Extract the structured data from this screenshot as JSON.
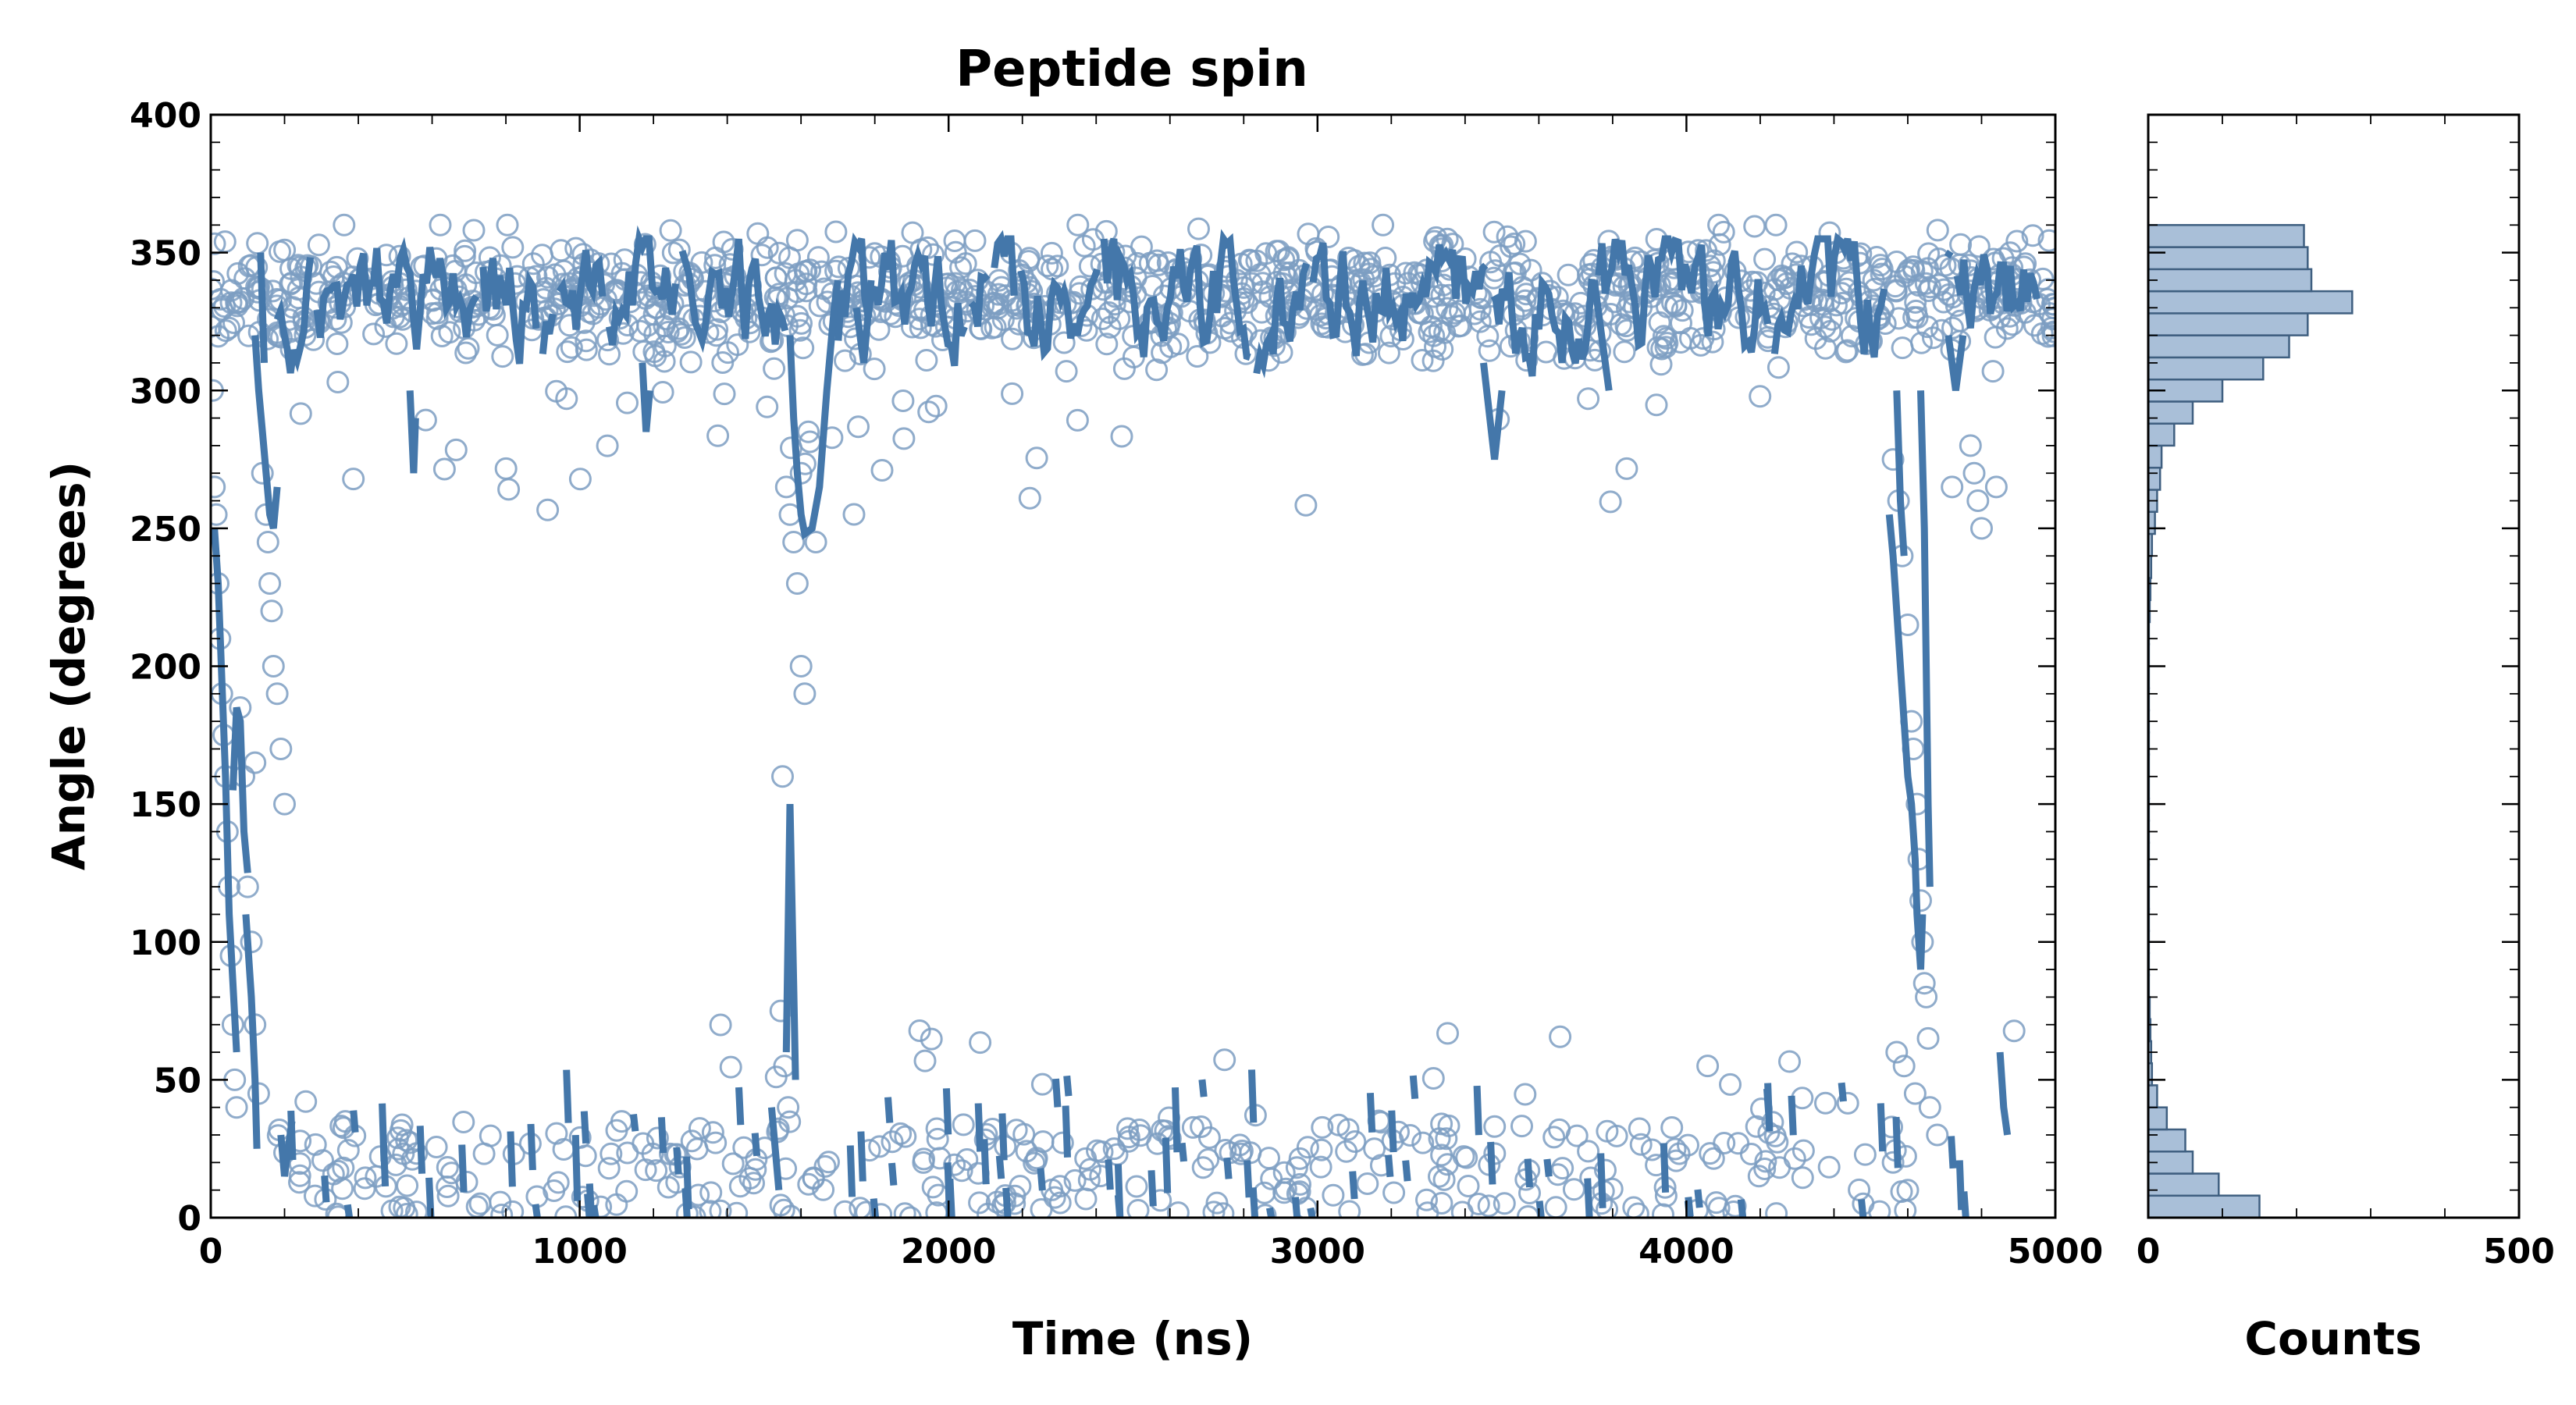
{
  "chart_data": [
    {
      "type": "scatter",
      "title": "Peptide spin",
      "xlabel": "Time (ns)",
      "ylabel": "Angle (degrees)",
      "xlim": [
        0,
        5000
      ],
      "ylim": [
        0,
        400
      ],
      "xticks": [
        0,
        1000,
        2000,
        3000,
        4000,
        5000
      ],
      "yticks": [
        0,
        50,
        100,
        150,
        200,
        250,
        300,
        350,
        400
      ],
      "grid": false,
      "series_colors": {
        "points": "#7c9ec2",
        "segments": "#4477aa"
      },
      "bands": [
        {
          "x_start": 0,
          "x_end": 5000,
          "y_low": 300,
          "y_high": 360,
          "n": 1100,
          "seed": 11
        },
        {
          "x_start": 180,
          "x_end": 4600,
          "y_low": 0,
          "y_high": 35,
          "n": 330,
          "seed": 23
        },
        {
          "x_start": 180,
          "x_end": 4950,
          "y_low": 255,
          "y_high": 300,
          "n": 40,
          "seed": 37
        },
        {
          "x_start": 180,
          "x_end": 4950,
          "y_low": 35,
          "y_high": 70,
          "n": 25,
          "seed": 41
        }
      ],
      "points_extra": [
        [
          5,
          300
        ],
        [
          10,
          265
        ],
        [
          15,
          255
        ],
        [
          20,
          230
        ],
        [
          25,
          210
        ],
        [
          30,
          190
        ],
        [
          35,
          175
        ],
        [
          40,
          160
        ],
        [
          45,
          140
        ],
        [
          50,
          120
        ],
        [
          55,
          95
        ],
        [
          60,
          70
        ],
        [
          65,
          50
        ],
        [
          70,
          40
        ],
        [
          80,
          185
        ],
        [
          90,
          160
        ],
        [
          100,
          120
        ],
        [
          110,
          100
        ],
        [
          120,
          70
        ],
        [
          130,
          45
        ],
        [
          140,
          270
        ],
        [
          150,
          255
        ],
        [
          155,
          245
        ],
        [
          160,
          230
        ],
        [
          165,
          220
        ],
        [
          170,
          200
        ],
        [
          180,
          190
        ],
        [
          190,
          170
        ],
        [
          200,
          150
        ],
        [
          120,
          165
        ],
        [
          1560,
          265
        ],
        [
          1570,
          255
        ],
        [
          1580,
          245
        ],
        [
          1590,
          230
        ],
        [
          1600,
          200
        ],
        [
          1610,
          190
        ],
        [
          1550,
          160
        ],
        [
          1545,
          75
        ],
        [
          1555,
          55
        ],
        [
          1565,
          40
        ],
        [
          1600,
          270
        ],
        [
          1620,
          285
        ],
        [
          1640,
          245
        ],
        [
          4560,
          275
        ],
        [
          4575,
          260
        ],
        [
          4585,
          240
        ],
        [
          4600,
          215
        ],
        [
          4610,
          180
        ],
        [
          4615,
          170
        ],
        [
          4625,
          150
        ],
        [
          4630,
          130
        ],
        [
          4635,
          115
        ],
        [
          4640,
          100
        ],
        [
          4645,
          85
        ],
        [
          4650,
          80
        ],
        [
          4655,
          65
        ],
        [
          4570,
          60
        ],
        [
          4590,
          55
        ],
        [
          4620,
          45
        ],
        [
          4660,
          40
        ],
        [
          4680,
          30
        ],
        [
          4770,
          280
        ],
        [
          4780,
          270
        ],
        [
          4790,
          260
        ],
        [
          4800,
          250
        ],
        [
          4720,
          265
        ],
        [
          4840,
          265
        ],
        [
          4560,
          20
        ],
        [
          4600,
          10
        ]
      ],
      "segments": [
        [
          [
            10,
            250
          ],
          [
            20,
            230
          ],
          [
            30,
            195
          ],
          [
            40,
            160
          ],
          [
            50,
            110
          ],
          [
            60,
            85
          ],
          [
            70,
            60
          ]
        ],
        [
          [
            60,
            155
          ],
          [
            70,
            185
          ],
          [
            80,
            180
          ],
          [
            90,
            140
          ],
          [
            100,
            125
          ]
        ],
        [
          [
            95,
            110
          ],
          [
            100,
            100
          ],
          [
            110,
            80
          ],
          [
            120,
            50
          ],
          [
            125,
            25
          ]
        ],
        [
          [
            120,
            320
          ],
          [
            130,
            300
          ],
          [
            140,
            285
          ],
          [
            150,
            270
          ],
          [
            160,
            255
          ],
          [
            170,
            250
          ],
          [
            180,
            265
          ]
        ],
        [
          [
            135,
            350
          ],
          [
            140,
            330
          ],
          [
            145,
            310
          ]
        ],
        [
          [
            190,
            30
          ],
          [
            200,
            15
          ],
          [
            210,
            25
          ],
          [
            220,
            35
          ]
        ],
        [
          [
            1520,
            40
          ],
          [
            1530,
            25
          ],
          [
            1540,
            10
          ]
        ],
        [
          [
            1560,
            60
          ],
          [
            1570,
            150
          ],
          [
            1580,
            85
          ],
          [
            1585,
            50
          ]
        ],
        [
          [
            1570,
            320
          ],
          [
            1580,
            290
          ],
          [
            1590,
            270
          ],
          [
            1600,
            255
          ],
          [
            1610,
            248
          ],
          [
            1630,
            250
          ],
          [
            1650,
            265
          ],
          [
            1670,
            300
          ],
          [
            1690,
            330
          ],
          [
            1700,
            340
          ]
        ],
        [
          [
            4550,
            255
          ],
          [
            4560,
            240
          ],
          [
            4570,
            220
          ],
          [
            4580,
            200
          ],
          [
            4590,
            180
          ],
          [
            4600,
            160
          ],
          [
            4610,
            150
          ],
          [
            4620,
            130
          ],
          [
            4625,
            110
          ],
          [
            4630,
            100
          ],
          [
            4635,
            90
          ],
          [
            4640,
            110
          ]
        ],
        [
          [
            4570,
            300
          ],
          [
            4580,
            260
          ],
          [
            4590,
            240
          ]
        ],
        [
          [
            4635,
            300
          ],
          [
            4645,
            250
          ],
          [
            4650,
            200
          ],
          [
            4655,
            150
          ],
          [
            4660,
            120
          ]
        ],
        [
          [
            4850,
            60
          ],
          [
            4860,
            40
          ],
          [
            4870,
            30
          ]
        ],
        [
          [
            1750,
            330
          ],
          [
            1770,
            310
          ],
          [
            1790,
            340
          ]
        ],
        [
          [
            540,
            300
          ],
          [
            550,
            270
          ],
          [
            555,
            290
          ]
        ],
        [
          [
            1170,
            310
          ],
          [
            1180,
            285
          ],
          [
            1190,
            300
          ]
        ],
        [
          [
            3450,
            310
          ],
          [
            3480,
            275
          ],
          [
            3500,
            300
          ]
        ],
        [
          [
            3750,
            340
          ],
          [
            3770,
            320
          ],
          [
            3790,
            300
          ]
        ],
        [
          [
            4710,
            320
          ],
          [
            4730,
            300
          ],
          [
            4750,
            320
          ]
        ]
      ],
      "trace": {
        "x_start": 180,
        "x_end": 4950,
        "y_center": 333,
        "y_spread": 22,
        "step_ns": 9,
        "seed": 77,
        "skip": [
          [
            1560,
            1700
          ],
          [
            4540,
            4700
          ]
        ]
      },
      "small_segments": {
        "n": 85,
        "x_start": 200,
        "x_end": 4900,
        "y_low": 3,
        "y_high": 55,
        "seed": 91
      },
      "frame_color": "#000000"
    },
    {
      "type": "bar",
      "orientation": "horizontal",
      "xlabel": "Counts",
      "ylabel": "",
      "xlim": [
        0,
        500
      ],
      "ylim": [
        0,
        400
      ],
      "xticks": [
        0,
        500
      ],
      "bin_width": 8,
      "bins_start": [
        0,
        8,
        16,
        24,
        32,
        40,
        48,
        56,
        64,
        72,
        80,
        88,
        96,
        104,
        112,
        120,
        128,
        136,
        144,
        152,
        160,
        168,
        176,
        184,
        192,
        200,
        208,
        216,
        224,
        232,
        240,
        248,
        256,
        264,
        272,
        280,
        288,
        296,
        304,
        312,
        320,
        328,
        336,
        344,
        352
      ],
      "values": [
        150,
        95,
        60,
        50,
        25,
        12,
        5,
        4,
        3,
        2,
        1,
        1,
        1,
        1,
        1,
        1,
        1,
        1,
        1,
        1,
        1,
        1,
        1,
        1,
        1,
        1,
        1,
        2,
        3,
        4,
        5,
        9,
        12,
        16,
        18,
        35,
        60,
        100,
        155,
        190,
        215,
        275,
        220,
        215,
        210
      ],
      "bar_color": "#a9bfd8",
      "edge_color": "#3f5f80"
    }
  ]
}
